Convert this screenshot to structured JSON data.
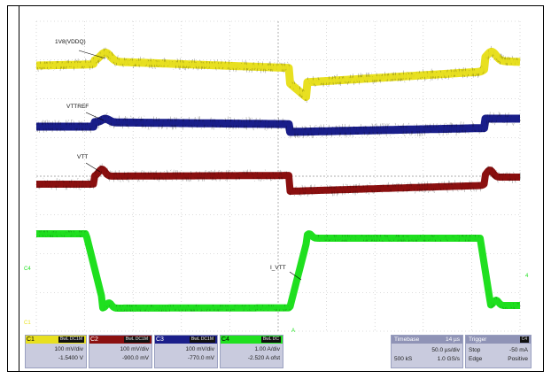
{
  "labels": {
    "trace1": "1V8(VDDQ)",
    "trace2": "VTTREF",
    "trace3": "VTT",
    "trace4": "I_VTT"
  },
  "markers": {
    "c4_left": "C4",
    "c1_left": "C1",
    "c4_right": "4",
    "trigger_bottom": "A"
  },
  "colors": {
    "c1": "#e8e020",
    "c2": "#8b1010",
    "c3": "#1a1e8a",
    "c4": "#1fe01f",
    "grid": "#bbbbbb"
  },
  "channels": [
    {
      "name": "C1",
      "coupling": "BwL DC1M",
      "scale": "100 mV/div",
      "offset": "-1.5400 V",
      "color": "#e8e020"
    },
    {
      "name": "C2",
      "coupling": "BwL DC1M",
      "scale": "100 mV/div",
      "offset": "-900.0 mV",
      "color": "#8b1010"
    },
    {
      "name": "C3",
      "coupling": "BwL DC1M",
      "scale": "100 mV/div",
      "offset": "-770.0 mV",
      "color": "#1a1e8a"
    },
    {
      "name": "C4",
      "coupling": "BwL DC",
      "scale": "1.00 A/div",
      "offset": "-2.520 A ofst",
      "color": "#1fe01f"
    }
  ],
  "timebase": {
    "title": "Timebase",
    "position": "14 µs",
    "per_div": "50.0 µs/div",
    "samples": "500 kS",
    "rate": "1.0 GS/s"
  },
  "trigger": {
    "title": "Trigger",
    "source": "C4",
    "mode": "Stop",
    "level": "-50 mA",
    "type": "Edge",
    "slope": "Positive"
  }
}
